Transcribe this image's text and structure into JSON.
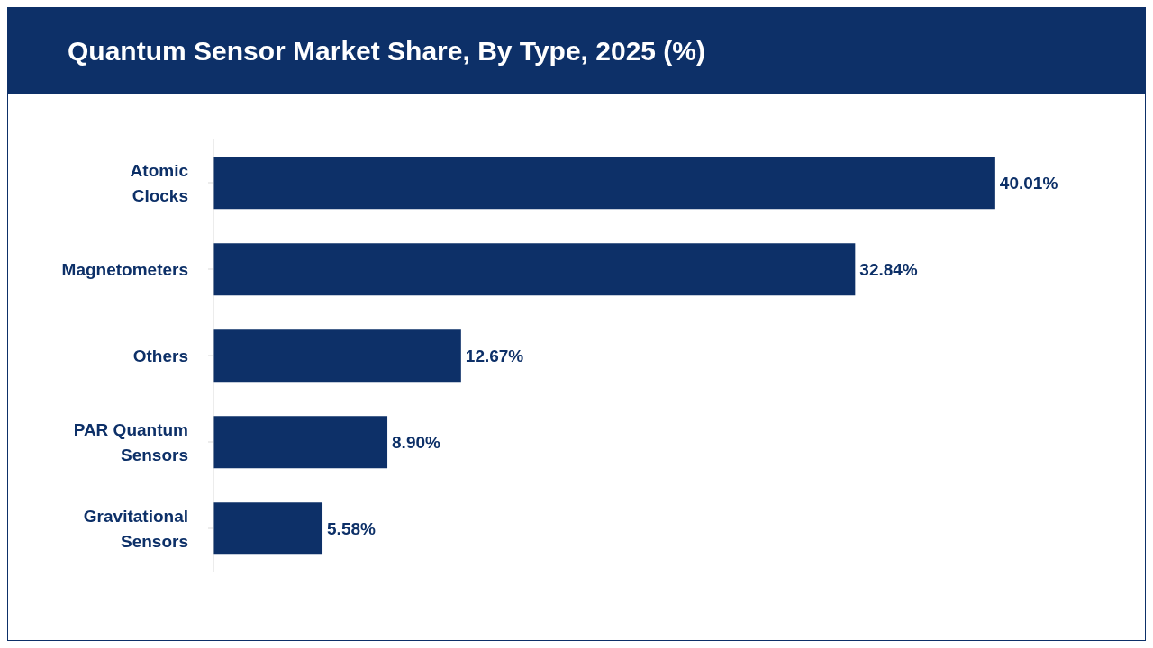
{
  "chart_data": {
    "type": "bar",
    "orientation": "horizontal",
    "title": "Quantum Sensor Market Share, By Type, 2025 (%)",
    "categories": [
      "Atomic Clocks",
      "Magnetometers",
      "Others",
      "PAR Quantum Sensors",
      "Gravitational Sensors"
    ],
    "values": [
      40.01,
      32.84,
      12.67,
      8.9,
      5.58
    ],
    "value_labels": [
      "40.01%",
      "32.84%",
      "12.67%",
      "8.90%",
      "5.58%"
    ],
    "color": "#0d3068",
    "grid": false
  }
}
